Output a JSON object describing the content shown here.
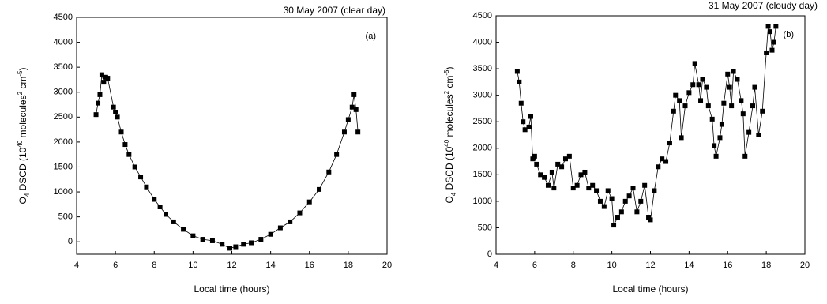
{
  "chart_data": [
    {
      "type": "scatter",
      "title": "30 May 2007 (clear day)",
      "panel": "(a)",
      "x_label": "Local time (hours)",
      "y_label": [
        {
          "text": "O"
        },
        {
          "text": "4",
          "style": "sub"
        },
        {
          "text": " DSCD (10"
        },
        {
          "text": "40",
          "style": "sup"
        },
        {
          "text": " molecules"
        },
        {
          "text": "2",
          "style": "sup"
        },
        {
          "text": " cm"
        },
        {
          "text": "-5",
          "style": "sup"
        },
        {
          "text": ")"
        }
      ],
      "xlim": [
        4,
        20
      ],
      "xticks": [
        4,
        6,
        8,
        10,
        12,
        14,
        16,
        18,
        20
      ],
      "ylim": [
        -250,
        4500
      ],
      "yticks": [
        0,
        500,
        1000,
        1500,
        2000,
        2500,
        3000,
        3500,
        4000,
        4500
      ],
      "color": "#000000",
      "line": true,
      "x": [
        5.0,
        5.1,
        5.2,
        5.3,
        5.4,
        5.5,
        5.6,
        5.9,
        6.0,
        6.1,
        6.3,
        6.5,
        6.7,
        7.0,
        7.3,
        7.6,
        8.0,
        8.3,
        8.6,
        9.0,
        9.5,
        10.0,
        10.5,
        11.0,
        11.5,
        11.9,
        12.2,
        12.6,
        13.0,
        13.5,
        14.0,
        14.5,
        15.0,
        15.5,
        16.0,
        16.5,
        17.0,
        17.4,
        17.8,
        18.0,
        18.2,
        18.3,
        18.4,
        18.5
      ],
      "values": [
        2550,
        2780,
        2950,
        3350,
        3200,
        3300,
        3280,
        2700,
        2600,
        2500,
        2200,
        1950,
        1750,
        1500,
        1300,
        1100,
        850,
        700,
        550,
        400,
        250,
        120,
        50,
        20,
        -50,
        -130,
        -100,
        -50,
        -20,
        50,
        150,
        280,
        400,
        580,
        800,
        1050,
        1400,
        1750,
        2200,
        2450,
        2700,
        2950,
        2650,
        2200
      ]
    },
    {
      "type": "scatter",
      "title": "31 May 2007 (cloudy day)",
      "panel": "(b)",
      "x_label": "Local time (hours)",
      "y_label": [
        {
          "text": "O"
        },
        {
          "text": "4",
          "style": "sub"
        },
        {
          "text": " DSCD (10"
        },
        {
          "text": "40",
          "style": "sup"
        },
        {
          "text": " molecules"
        },
        {
          "text": "2",
          "style": "sup"
        },
        {
          "text": " cm"
        },
        {
          "text": "-5",
          "style": "sup"
        },
        {
          "text": ")"
        }
      ],
      "xlim": [
        4,
        20
      ],
      "xticks": [
        4,
        6,
        8,
        10,
        12,
        14,
        16,
        18,
        20
      ],
      "ylim": [
        0,
        4500
      ],
      "yticks": [
        0,
        500,
        1000,
        1500,
        2000,
        2500,
        3000,
        3500,
        4000,
        4500
      ],
      "color": "#000000",
      "line": true,
      "x": [
        5.1,
        5.2,
        5.3,
        5.4,
        5.5,
        5.7,
        5.8,
        5.9,
        6.0,
        6.1,
        6.3,
        6.5,
        6.7,
        6.9,
        7.0,
        7.2,
        7.4,
        7.6,
        7.8,
        8.0,
        8.2,
        8.4,
        8.6,
        8.8,
        9.0,
        9.2,
        9.4,
        9.6,
        9.8,
        10.0,
        10.1,
        10.3,
        10.5,
        10.7,
        10.9,
        11.1,
        11.3,
        11.5,
        11.7,
        11.9,
        12.0,
        12.2,
        12.4,
        12.6,
        12.8,
        13.0,
        13.2,
        13.3,
        13.5,
        13.6,
        13.8,
        14.0,
        14.2,
        14.3,
        14.5,
        14.6,
        14.7,
        14.9,
        15.0,
        15.2,
        15.3,
        15.4,
        15.6,
        15.7,
        15.8,
        16.0,
        16.1,
        16.2,
        16.3,
        16.5,
        16.7,
        16.8,
        16.9,
        17.1,
        17.3,
        17.4,
        17.6,
        17.8,
        18.0,
        18.1,
        18.2,
        18.3,
        18.4,
        18.5
      ],
      "values": [
        3450,
        3250,
        2850,
        2500,
        2350,
        2400,
        2600,
        1800,
        1850,
        1700,
        1500,
        1450,
        1300,
        1550,
        1250,
        1700,
        1650,
        1800,
        1850,
        1250,
        1300,
        1500,
        1550,
        1250,
        1300,
        1200,
        1000,
        900,
        1200,
        1050,
        550,
        700,
        800,
        1000,
        1100,
        1250,
        800,
        1000,
        1300,
        700,
        650,
        1200,
        1650,
        1800,
        1750,
        2100,
        2700,
        3000,
        2900,
        2200,
        2800,
        3050,
        3200,
        3600,
        3200,
        2900,
        3300,
        3150,
        2800,
        2550,
        2050,
        1850,
        2200,
        2450,
        2850,
        3400,
        3150,
        2800,
        3450,
        3300,
        2900,
        2650,
        1850,
        2300,
        2800,
        3150,
        2250,
        2700,
        3800,
        4300,
        4200,
        3850,
        4000,
        4300
      ]
    }
  ]
}
